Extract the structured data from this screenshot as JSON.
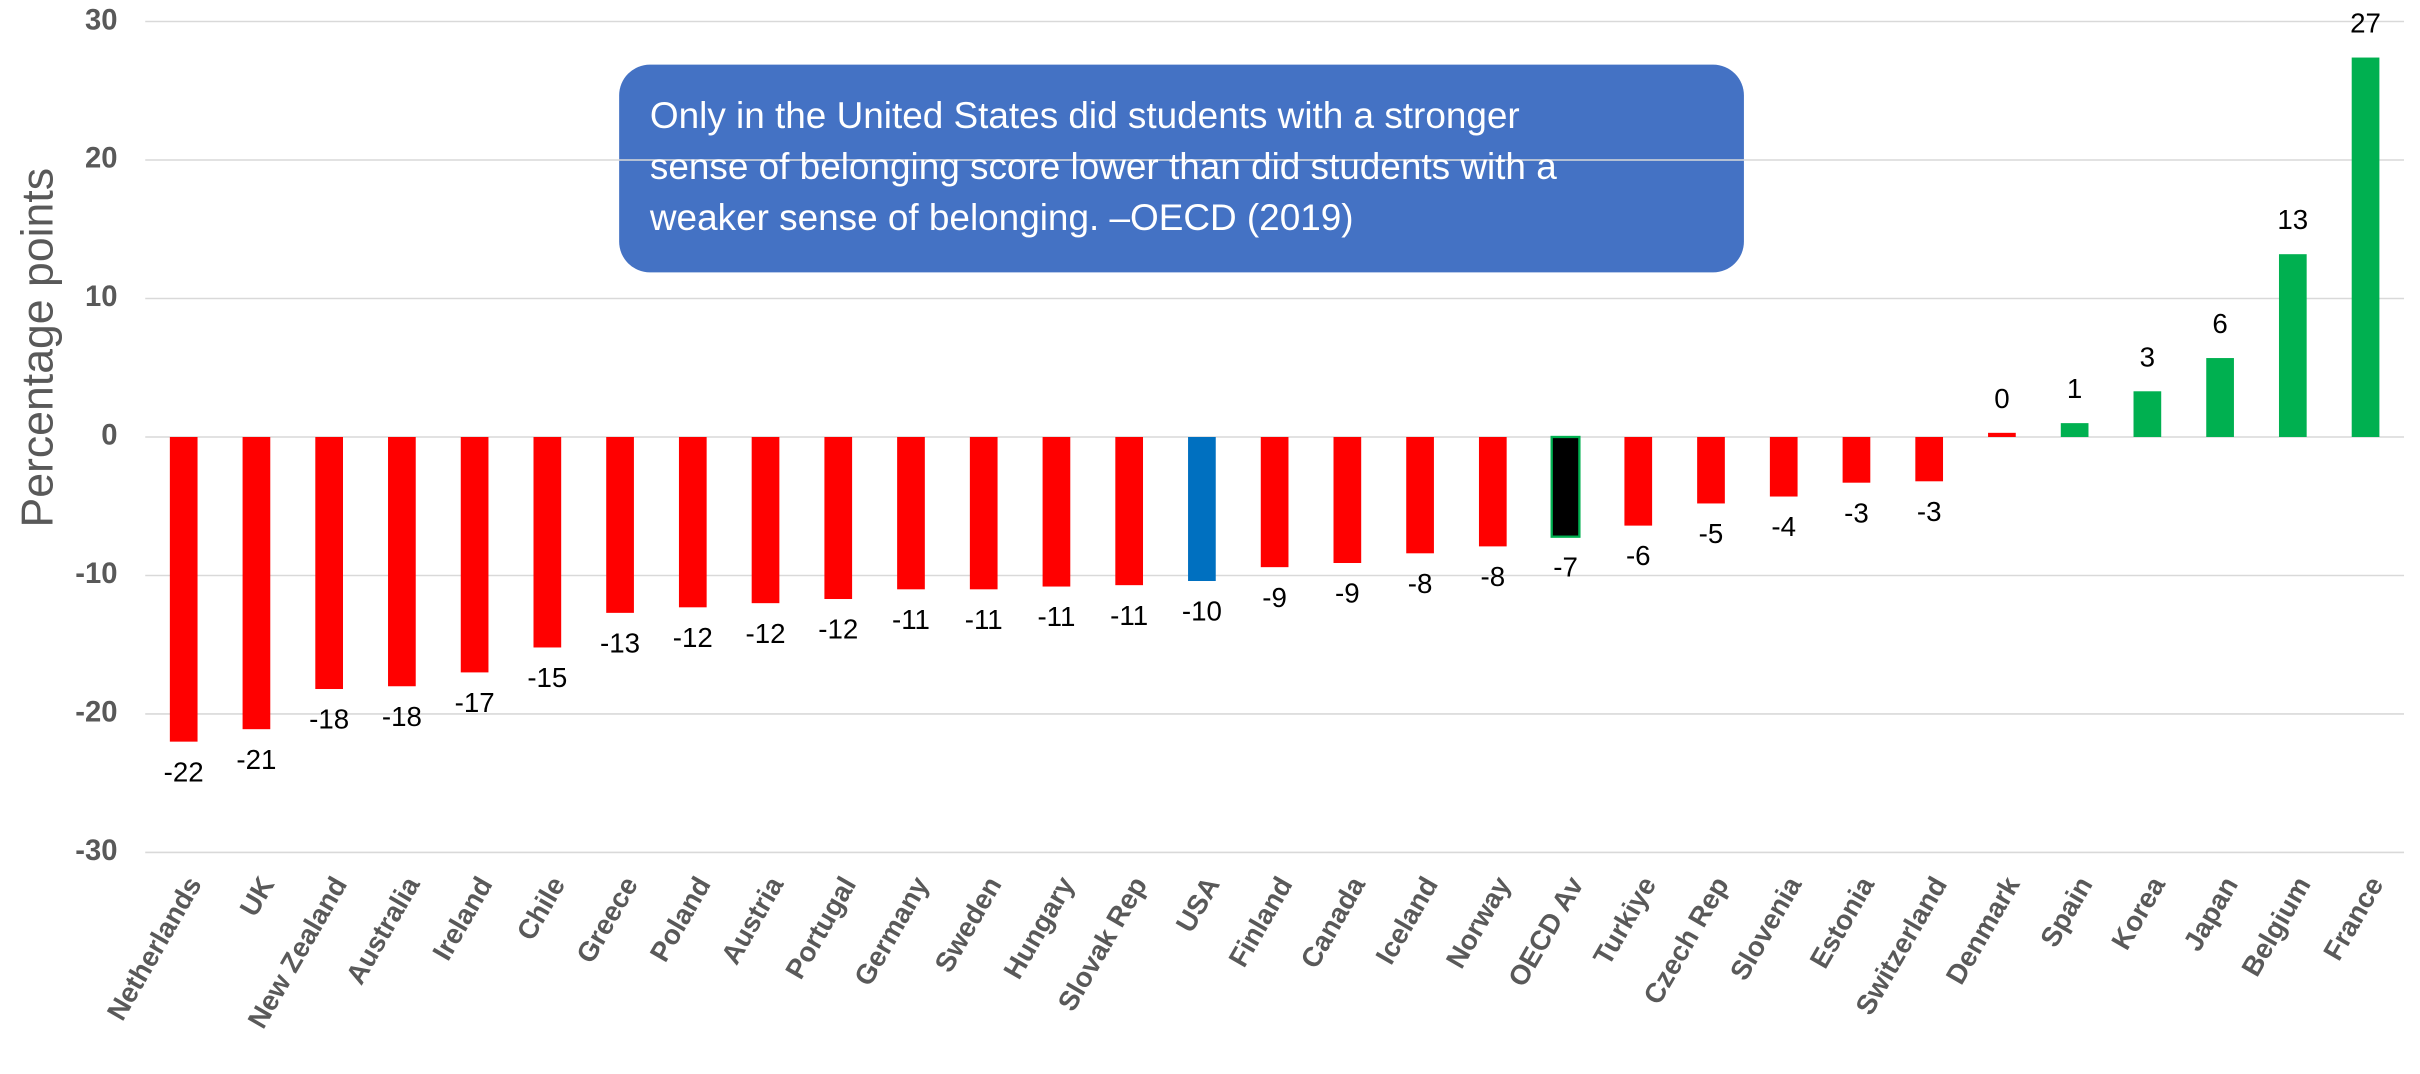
{
  "chart_data": {
    "type": "bar",
    "y_label": "Percentage points",
    "annotation": [
      "Only in the United States did students with a stronger",
      "sense of belonging score lower than did students with a",
      "weaker sense of belonging. –OECD (2019)"
    ],
    "categories": [
      "Netherlands",
      "UK",
      "New Zealand",
      "Australia",
      "Ireland",
      "Chile",
      "Greece",
      "Poland",
      "Austria",
      "Portugal",
      "Germany",
      "Sweden",
      "Hungary",
      "Slovak Rep",
      "USA",
      "Finland",
      "Canada",
      "Iceland",
      "Norway",
      "OECD Av",
      "Turkiye",
      "Czech Rep",
      "Slovenia",
      "Estonia",
      "Switzerland",
      "Denmark",
      "Spain",
      "Korea",
      "Japan",
      "Belgium",
      "France"
    ],
    "values": [
      -22.0,
      -21.1,
      -18.2,
      -18.0,
      -17.0,
      -15.2,
      -12.7,
      -12.3,
      -12.0,
      -11.7,
      -11.0,
      -11.0,
      -10.8,
      -10.7,
      -10.4,
      -9.4,
      -9.1,
      -8.4,
      -7.9,
      -7.2,
      -6.4,
      -4.8,
      -4.3,
      -3.3,
      -3.2,
      0.3,
      1.0,
      3.3,
      5.7,
      13.2,
      27.4
    ],
    "value_labels": [
      "-22",
      "-21",
      "-18",
      "-18",
      "-17",
      "-15",
      "-13",
      "-12",
      "-12",
      "-12",
      "-11",
      "-11",
      "-11",
      "-11",
      "-10",
      "-9",
      "-9",
      "-8",
      "-8",
      "-7",
      "-6",
      "-5",
      "-4",
      "-3",
      "-3",
      "0",
      "1",
      "3",
      "6",
      "13",
      "27"
    ],
    "colors": [
      "#ff0000",
      "#ff0000",
      "#ff0000",
      "#ff0000",
      "#ff0000",
      "#ff0000",
      "#ff0000",
      "#ff0000",
      "#ff0000",
      "#ff0000",
      "#ff0000",
      "#ff0000",
      "#ff0000",
      "#ff0000",
      "#0070c0",
      "#ff0000",
      "#ff0000",
      "#ff0000",
      "#ff0000",
      "#000000",
      "#ff0000",
      "#ff0000",
      "#ff0000",
      "#ff0000",
      "#ff0000",
      "#ff0000",
      "#00b050",
      "#00b050",
      "#00b050",
      "#00b050",
      "#00b050"
    ],
    "ylim": [
      -30,
      30
    ],
    "yticks": [
      -30,
      -20,
      -10,
      0,
      10,
      20,
      30
    ],
    "grid": true
  }
}
